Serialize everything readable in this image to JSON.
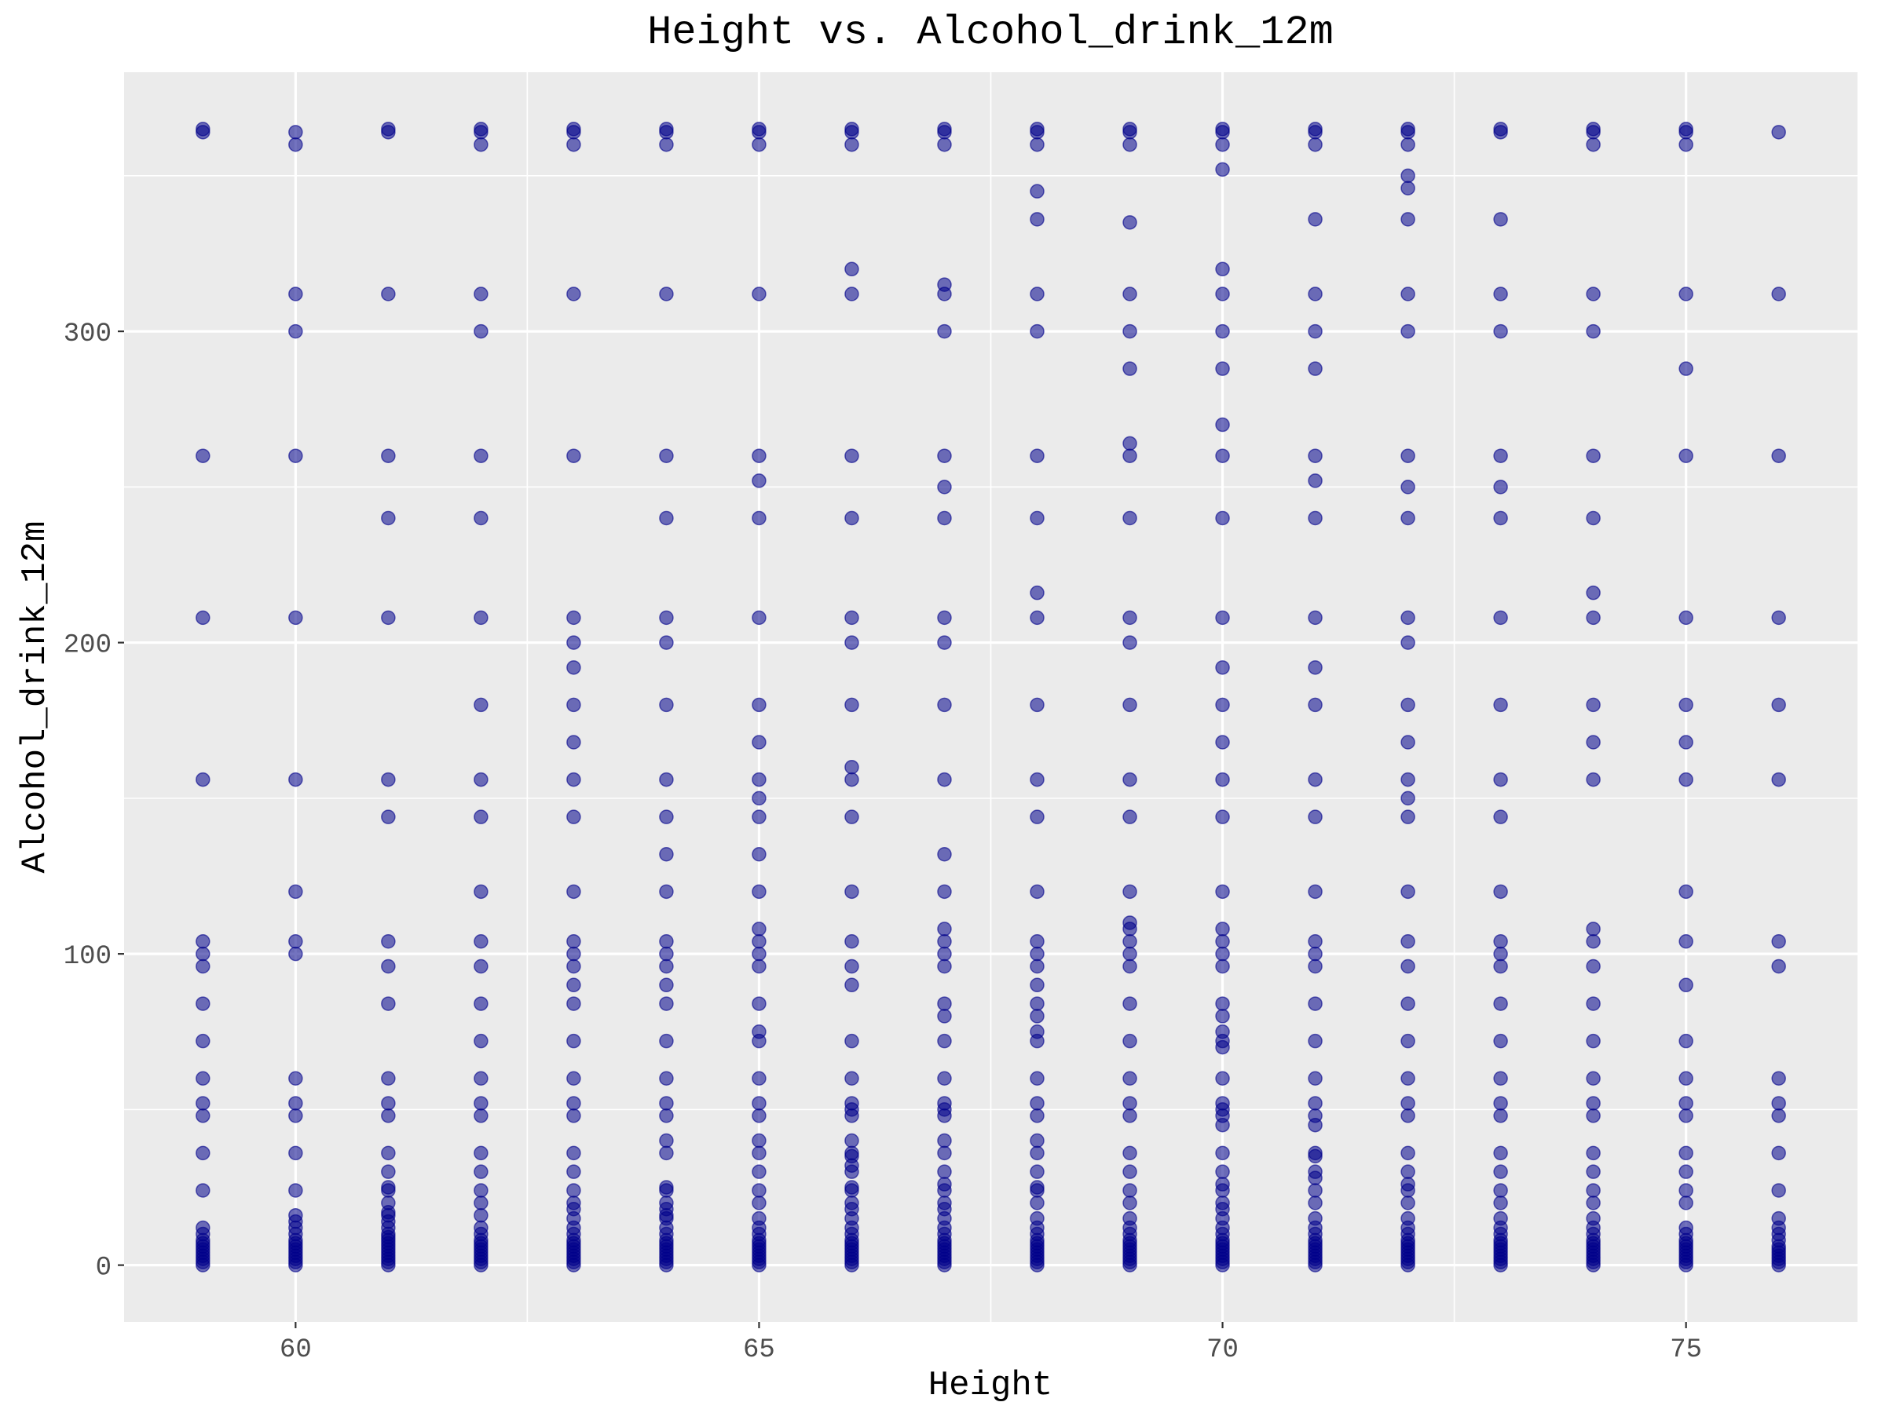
{
  "chart_data": {
    "type": "scatter",
    "title": "Height vs. Alcohol_drink_12m",
    "xlabel": "Height",
    "ylabel": "Alcohol_drink_12m",
    "xlim": [
      58.15,
      76.85
    ],
    "ylim": [
      -18.25,
      383.25
    ],
    "x_ticks": [
      60,
      65,
      70,
      75
    ],
    "y_ticks": [
      0,
      100,
      200,
      300
    ],
    "x_tick_labels": [
      "60",
      "65",
      "70",
      "75"
    ],
    "y_tick_labels": [
      "0",
      "100",
      "200",
      "300"
    ],
    "grid": true,
    "point_color": "#00008B",
    "panel_background": "#EBEBEB",
    "grid_color": "#FFFFFF",
    "columns": [
      {
        "x": 59,
        "y": [
          0,
          1,
          2,
          3,
          4,
          5,
          6,
          7,
          8,
          10,
          12,
          24,
          36,
          48,
          52,
          60,
          72,
          84,
          96,
          100,
          104,
          156,
          208,
          260,
          364,
          365
        ]
      },
      {
        "x": 60,
        "y": [
          0,
          1,
          2,
          3,
          4,
          5,
          6,
          7,
          8,
          10,
          12,
          14,
          16,
          24,
          36,
          48,
          52,
          60,
          100,
          104,
          120,
          156,
          208,
          260,
          300,
          312,
          360,
          364
        ]
      },
      {
        "x": 61,
        "y": [
          0,
          1,
          2,
          3,
          4,
          5,
          6,
          7,
          8,
          9,
          10,
          12,
          14,
          16,
          17,
          20,
          24,
          25,
          30,
          36,
          48,
          52,
          60,
          84,
          96,
          104,
          144,
          156,
          208,
          240,
          260,
          312,
          364,
          365
        ]
      },
      {
        "x": 62,
        "y": [
          0,
          1,
          2,
          3,
          4,
          5,
          6,
          7,
          8,
          10,
          12,
          16,
          20,
          24,
          30,
          36,
          48,
          52,
          60,
          72,
          84,
          96,
          104,
          120,
          144,
          156,
          180,
          208,
          240,
          260,
          300,
          312,
          360,
          364,
          365
        ]
      },
      {
        "x": 63,
        "y": [
          0,
          1,
          2,
          3,
          4,
          5,
          6,
          7,
          8,
          10,
          12,
          15,
          18,
          20,
          24,
          30,
          36,
          48,
          52,
          60,
          72,
          84,
          90,
          96,
          100,
          104,
          120,
          144,
          156,
          168,
          180,
          192,
          200,
          208,
          260,
          312,
          360,
          364,
          365
        ]
      },
      {
        "x": 64,
        "y": [
          0,
          1,
          2,
          3,
          4,
          5,
          6,
          7,
          8,
          10,
          12,
          15,
          16,
          18,
          20,
          24,
          25,
          36,
          40,
          48,
          52,
          60,
          72,
          84,
          90,
          96,
          100,
          104,
          120,
          132,
          144,
          156,
          180,
          200,
          208,
          240,
          260,
          312,
          360,
          364,
          365
        ]
      },
      {
        "x": 65,
        "y": [
          0,
          1,
          2,
          3,
          4,
          5,
          6,
          7,
          8,
          10,
          12,
          15,
          20,
          24,
          30,
          36,
          40,
          48,
          52,
          60,
          72,
          75,
          84,
          96,
          100,
          104,
          108,
          120,
          132,
          144,
          150,
          156,
          168,
          180,
          208,
          240,
          252,
          260,
          312,
          360,
          364,
          365
        ]
      },
      {
        "x": 66,
        "y": [
          0,
          1,
          2,
          3,
          4,
          5,
          6,
          7,
          8,
          10,
          12,
          15,
          18,
          20,
          24,
          25,
          30,
          32,
          35,
          36,
          40,
          48,
          50,
          52,
          60,
          72,
          90,
          96,
          104,
          120,
          144,
          156,
          160,
          180,
          200,
          208,
          240,
          260,
          312,
          320,
          360,
          364,
          365
        ]
      },
      {
        "x": 67,
        "y": [
          0,
          1,
          2,
          3,
          4,
          5,
          6,
          7,
          8,
          10,
          12,
          15,
          18,
          20,
          24,
          26,
          30,
          36,
          40,
          48,
          50,
          52,
          60,
          72,
          80,
          84,
          96,
          100,
          104,
          108,
          120,
          132,
          156,
          180,
          200,
          208,
          240,
          250,
          260,
          300,
          312,
          315,
          360,
          364,
          365
        ]
      },
      {
        "x": 68,
        "y": [
          0,
          1,
          2,
          3,
          4,
          5,
          6,
          7,
          8,
          10,
          12,
          15,
          20,
          24,
          25,
          30,
          36,
          40,
          48,
          52,
          60,
          72,
          75,
          80,
          84,
          90,
          96,
          100,
          104,
          120,
          144,
          156,
          180,
          208,
          216,
          240,
          260,
          300,
          312,
          336,
          345,
          360,
          364,
          365
        ]
      },
      {
        "x": 69,
        "y": [
          0,
          1,
          2,
          3,
          4,
          5,
          6,
          7,
          8,
          10,
          12,
          15,
          20,
          24,
          30,
          36,
          48,
          52,
          60,
          72,
          84,
          96,
          100,
          104,
          108,
          110,
          120,
          144,
          156,
          180,
          200,
          208,
          240,
          260,
          264,
          288,
          300,
          312,
          335,
          360,
          364,
          365
        ]
      },
      {
        "x": 70,
        "y": [
          0,
          1,
          2,
          3,
          4,
          5,
          6,
          7,
          8,
          10,
          12,
          15,
          18,
          20,
          24,
          26,
          30,
          36,
          45,
          48,
          50,
          52,
          60,
          70,
          72,
          75,
          80,
          84,
          96,
          100,
          104,
          108,
          120,
          144,
          156,
          168,
          180,
          192,
          208,
          240,
          260,
          270,
          288,
          300,
          312,
          320,
          352,
          360,
          364,
          365
        ]
      },
      {
        "x": 71,
        "y": [
          0,
          1,
          2,
          3,
          4,
          5,
          6,
          7,
          8,
          10,
          12,
          15,
          20,
          24,
          28,
          30,
          35,
          36,
          45,
          48,
          52,
          60,
          72,
          84,
          96,
          100,
          104,
          120,
          144,
          156,
          180,
          192,
          208,
          240,
          252,
          260,
          288,
          300,
          312,
          336,
          360,
          364,
          365
        ]
      },
      {
        "x": 72,
        "y": [
          0,
          1,
          2,
          3,
          4,
          5,
          6,
          7,
          8,
          10,
          12,
          15,
          20,
          24,
          26,
          30,
          36,
          48,
          52,
          60,
          72,
          84,
          96,
          104,
          120,
          144,
          150,
          156,
          168,
          180,
          200,
          208,
          240,
          250,
          260,
          300,
          312,
          336,
          346,
          350,
          360,
          364,
          365
        ]
      },
      {
        "x": 73,
        "y": [
          0,
          1,
          2,
          3,
          4,
          5,
          6,
          7,
          8,
          10,
          12,
          15,
          20,
          24,
          30,
          36,
          48,
          52,
          60,
          72,
          84,
          96,
          100,
          104,
          120,
          144,
          156,
          180,
          208,
          240,
          250,
          260,
          300,
          312,
          336,
          364,
          365
        ]
      },
      {
        "x": 74,
        "y": [
          0,
          1,
          2,
          3,
          4,
          5,
          6,
          7,
          8,
          10,
          12,
          15,
          20,
          24,
          30,
          36,
          48,
          52,
          60,
          72,
          84,
          96,
          104,
          108,
          156,
          168,
          180,
          208,
          216,
          240,
          260,
          300,
          312,
          360,
          364,
          365
        ]
      },
      {
        "x": 75,
        "y": [
          0,
          1,
          2,
          3,
          4,
          5,
          6,
          7,
          8,
          10,
          12,
          20,
          24,
          30,
          36,
          48,
          52,
          60,
          72,
          90,
          104,
          120,
          156,
          168,
          180,
          208,
          260,
          288,
          312,
          360,
          364,
          365
        ]
      },
      {
        "x": 76,
        "y": [
          0,
          1,
          2,
          3,
          4,
          5,
          6,
          8,
          10,
          12,
          15,
          24,
          36,
          48,
          52,
          60,
          96,
          104,
          156,
          180,
          208,
          260,
          312,
          364
        ]
      }
    ]
  }
}
